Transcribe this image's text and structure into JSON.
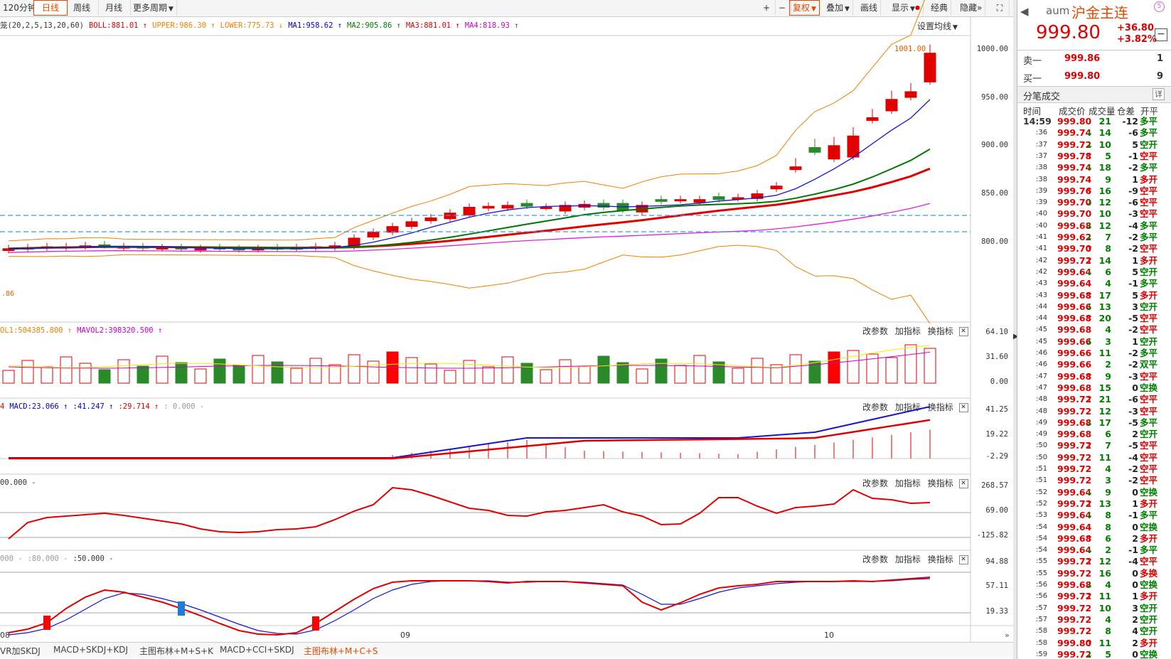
{
  "toolbar": {
    "period_120": "120分钟",
    "daily": "日线",
    "weekly": "周线",
    "monthly": "月线",
    "more_periods": "更多周期",
    "restore_rights": "复权",
    "overlay": "叠加",
    "draw_line": "画线",
    "display": "显示",
    "classic": "经典",
    "hide": "隐藏"
  },
  "main_chart": {
    "indicator_header": [
      {
        "text": "笼(20,2,5,13,20,60)",
        "color": "#333333"
      },
      {
        "text": "BOLL:881.01 ↑",
        "color": "#e00000"
      },
      {
        "text": "UPPER:986.30 ↑",
        "color": "#f08000"
      },
      {
        "text": "LOWER:775.73 ↓",
        "color": "#f08000"
      },
      {
        "text": "MA1:958.62 ↑",
        "color": "#0000d0"
      },
      {
        "text": "MA2:905.86 ↑",
        "color": "#008000"
      },
      {
        "text": "MA3:881.01 ↑",
        "color": "#e00000"
      },
      {
        "text": "MA4:818.93 ↑",
        "color": "#cc00cc"
      }
    ],
    "ma_settings": "设置均线",
    "max_label": "1001.00",
    "min_label": ".86",
    "y_ticks": [
      "1000.00",
      "950.00",
      "900.00",
      "850.00",
      "800.00"
    ]
  },
  "panels": {
    "change_params": "改参数",
    "add_indicator": "加指标",
    "switch_indicator": "换指标"
  },
  "vol_panel": {
    "header": [
      {
        "text": "OL1:504385.800 ↑",
        "color": "#f08000"
      },
      {
        "text": "MAVOL2:398320.500 ↑",
        "color": "#cc00cc"
      }
    ],
    "y_ticks": [
      "64.10",
      "31.60",
      "0.00"
    ]
  },
  "macd_panel": {
    "header": [
      {
        "text": "4",
        "color": "#e00000"
      },
      {
        "text": "MACD:23.066 ↑",
        "color": "#0000d0"
      },
      {
        "text": ":41.247 ↑",
        "color": "#0000d0"
      },
      {
        "text": ":29.714 ↑",
        "color": "#e00000"
      },
      {
        "text": ": 0.000 -",
        "color": "#999999"
      }
    ],
    "y_ticks": [
      "41.25",
      "19.22",
      "-2.29"
    ]
  },
  "cci_panel": {
    "header": [
      {
        "text": "00.000 -",
        "color": "#333333"
      }
    ],
    "y_ticks": [
      "268.57",
      "69.00",
      "-125.82"
    ]
  },
  "kdj_panel": {
    "header": [
      {
        "text": "000 -",
        "color": "#999999"
      },
      {
        "text": ":80.000 -",
        "color": "#999999"
      },
      {
        "text": ":50.000 -",
        "color": "#333333"
      }
    ],
    "y_ticks": [
      "94.88",
      "57.11",
      "19.33"
    ]
  },
  "x_axis": {
    "labels": [
      "08",
      "09",
      "10"
    ]
  },
  "bottom_tabs": [
    "VR加SKDJ",
    "MACD+SKDJ+KDJ",
    "主图布林+M+S+K",
    "MACD+CCI+SKDJ",
    "主图布林+M+C+S"
  ],
  "quote": {
    "code": "aum",
    "name": "沪金主连",
    "price": "999.80",
    "change": "+36.80",
    "change_pct": "+3.82%",
    "sell_label": "卖一",
    "sell_price": "999.86",
    "sell_vol": "1",
    "buy_label": "买一",
    "buy_price": "999.80",
    "buy_vol": "9",
    "ticks_title": "分笔成交",
    "detail_btn": "详",
    "col_headers": [
      "时间",
      "成交价",
      "成交量",
      "仓差",
      "开平"
    ]
  },
  "ticks": [
    {
      "t": "14:59",
      "p": "999.80",
      "d": "",
      "v": "21",
      "oi": "-12",
      "k": "多平",
      "pc": "red",
      "kc": "green"
    },
    {
      "t": ":36",
      "p": "999.74",
      "d": "↓",
      "v": "14",
      "oi": "-6",
      "k": "多平",
      "pc": "red",
      "kc": "green"
    },
    {
      "t": ":37",
      "p": "999.72",
      "d": "↓",
      "v": "10",
      "oi": "5",
      "k": "空开",
      "pc": "red",
      "kc": "green"
    },
    {
      "t": ":37",
      "p": "999.78",
      "d": "↑",
      "v": "5",
      "oi": "-1",
      "k": "空平",
      "pc": "red",
      "kc": "red"
    },
    {
      "t": ":38",
      "p": "999.74",
      "d": "↓",
      "v": "18",
      "oi": "-2",
      "k": "多平",
      "pc": "red",
      "kc": "green"
    },
    {
      "t": ":38",
      "p": "999.74",
      "d": "",
      "v": "9",
      "oi": "1",
      "k": "多开",
      "pc": "red",
      "kc": "red"
    },
    {
      "t": ":39",
      "p": "999.76",
      "d": "↑",
      "v": "16",
      "oi": "-9",
      "k": "空平",
      "pc": "red",
      "kc": "red"
    },
    {
      "t": ":39",
      "p": "999.70",
      "d": "↓",
      "v": "12",
      "oi": "-6",
      "k": "空平",
      "pc": "red",
      "kc": "red"
    },
    {
      "t": ":40",
      "p": "999.70",
      "d": "",
      "v": "10",
      "oi": "-3",
      "k": "空平",
      "pc": "red",
      "kc": "red"
    },
    {
      "t": ":40",
      "p": "999.68",
      "d": "↓",
      "v": "12",
      "oi": "-4",
      "k": "多平",
      "pc": "red",
      "kc": "green"
    },
    {
      "t": ":41",
      "p": "999.62",
      "d": "↓",
      "v": "7",
      "oi": "-2",
      "k": "多平",
      "pc": "red",
      "kc": "green"
    },
    {
      "t": ":41",
      "p": "999.70",
      "d": "↑",
      "v": "8",
      "oi": "-2",
      "k": "空平",
      "pc": "red",
      "kc": "red"
    },
    {
      "t": ":42",
      "p": "999.72",
      "d": "↑",
      "v": "14",
      "oi": "1",
      "k": "多开",
      "pc": "red",
      "kc": "red"
    },
    {
      "t": ":42",
      "p": "999.64",
      "d": "↓",
      "v": "6",
      "oi": "5",
      "k": "空开",
      "pc": "red",
      "kc": "green"
    },
    {
      "t": ":43",
      "p": "999.64",
      "d": "",
      "v": "4",
      "oi": "-1",
      "k": "多平",
      "pc": "red",
      "kc": "green"
    },
    {
      "t": ":43",
      "p": "999.68",
      "d": "↑",
      "v": "17",
      "oi": "5",
      "k": "多开",
      "pc": "red",
      "kc": "red"
    },
    {
      "t": ":44",
      "p": "999.66",
      "d": "↓",
      "v": "13",
      "oi": "3",
      "k": "空开",
      "pc": "red",
      "kc": "green"
    },
    {
      "t": ":44",
      "p": "999.68",
      "d": "↑",
      "v": "20",
      "oi": "-5",
      "k": "空平",
      "pc": "red",
      "kc": "red"
    },
    {
      "t": ":45",
      "p": "999.68",
      "d": "",
      "v": "4",
      "oi": "-2",
      "k": "空平",
      "pc": "red",
      "kc": "red"
    },
    {
      "t": ":45",
      "p": "999.66",
      "d": "↓",
      "v": "3",
      "oi": "1",
      "k": "空开",
      "pc": "red",
      "kc": "green"
    },
    {
      "t": ":46",
      "p": "999.66",
      "d": "",
      "v": "11",
      "oi": "-2",
      "k": "多平",
      "pc": "red",
      "kc": "green"
    },
    {
      "t": ":46",
      "p": "999.66",
      "d": "",
      "v": "2",
      "oi": "-2",
      "k": "双平",
      "pc": "red",
      "kc": "green"
    },
    {
      "t": ":47",
      "p": "999.68",
      "d": "↑",
      "v": "9",
      "oi": "-3",
      "k": "空平",
      "pc": "red",
      "kc": "red"
    },
    {
      "t": ":47",
      "p": "999.68",
      "d": "",
      "v": "15",
      "oi": "0",
      "k": "空换",
      "pc": "red",
      "kc": "green"
    },
    {
      "t": ":48",
      "p": "999.72",
      "d": "↑",
      "v": "21",
      "oi": "-6",
      "k": "空平",
      "pc": "red",
      "kc": "red"
    },
    {
      "t": ":48",
      "p": "999.72",
      "d": "",
      "v": "12",
      "oi": "-3",
      "k": "空平",
      "pc": "red",
      "kc": "red"
    },
    {
      "t": ":49",
      "p": "999.68",
      "d": "↓",
      "v": "17",
      "oi": "-5",
      "k": "多平",
      "pc": "red",
      "kc": "green"
    },
    {
      "t": ":49",
      "p": "999.68",
      "d": "",
      "v": "6",
      "oi": "2",
      "k": "空开",
      "pc": "red",
      "kc": "green"
    },
    {
      "t": ":50",
      "p": "999.72",
      "d": "↑",
      "v": "7",
      "oi": "-5",
      "k": "空平",
      "pc": "red",
      "kc": "red"
    },
    {
      "t": ":50",
      "p": "999.72",
      "d": "",
      "v": "11",
      "oi": "-4",
      "k": "空平",
      "pc": "red",
      "kc": "red"
    },
    {
      "t": ":51",
      "p": "999.72",
      "d": "",
      "v": "4",
      "oi": "-2",
      "k": "空平",
      "pc": "red",
      "kc": "red"
    },
    {
      "t": ":51",
      "p": "999.72",
      "d": "",
      "v": "3",
      "oi": "-2",
      "k": "空平",
      "pc": "red",
      "kc": "red"
    },
    {
      "t": ":52",
      "p": "999.64",
      "d": "↓",
      "v": "9",
      "oi": "0",
      "k": "空换",
      "pc": "red",
      "kc": "green"
    },
    {
      "t": ":52",
      "p": "999.72",
      "d": "↑",
      "v": "13",
      "oi": "1",
      "k": "多开",
      "pc": "red",
      "kc": "red"
    },
    {
      "t": ":53",
      "p": "999.64",
      "d": "↓",
      "v": "8",
      "oi": "-1",
      "k": "多平",
      "pc": "red",
      "kc": "green"
    },
    {
      "t": ":54",
      "p": "999.64",
      "d": "",
      "v": "8",
      "oi": "0",
      "k": "空换",
      "pc": "red",
      "kc": "green"
    },
    {
      "t": ":54",
      "p": "999.68",
      "d": "↑",
      "v": "6",
      "oi": "2",
      "k": "多开",
      "pc": "red",
      "kc": "red"
    },
    {
      "t": ":54",
      "p": "999.64",
      "d": "↓",
      "v": "2",
      "oi": "-1",
      "k": "多平",
      "pc": "red",
      "kc": "green"
    },
    {
      "t": ":55",
      "p": "999.72",
      "d": "↑",
      "v": "12",
      "oi": "-4",
      "k": "空平",
      "pc": "red",
      "kc": "red"
    },
    {
      "t": ":55",
      "p": "999.72",
      "d": "",
      "v": "16",
      "oi": "0",
      "k": "多换",
      "pc": "red",
      "kc": "red"
    },
    {
      "t": ":56",
      "p": "999.68",
      "d": "↓",
      "v": "4",
      "oi": "0",
      "k": "空换",
      "pc": "red",
      "kc": "green"
    },
    {
      "t": ":56",
      "p": "999.72",
      "d": "↑",
      "v": "11",
      "oi": "1",
      "k": "多开",
      "pc": "red",
      "kc": "red"
    },
    {
      "t": ":57",
      "p": "999.72",
      "d": "",
      "v": "10",
      "oi": "3",
      "k": "空开",
      "pc": "red",
      "kc": "green"
    },
    {
      "t": ":57",
      "p": "999.72",
      "d": "",
      "v": "4",
      "oi": "2",
      "k": "空开",
      "pc": "red",
      "kc": "green"
    },
    {
      "t": ":58",
      "p": "999.72",
      "d": "",
      "v": "8",
      "oi": "4",
      "k": "空开",
      "pc": "red",
      "kc": "green"
    },
    {
      "t": ":58",
      "p": "999.80",
      "d": "↑",
      "v": "11",
      "oi": "2",
      "k": "多开",
      "pc": "red",
      "kc": "red"
    },
    {
      "t": ":59",
      "p": "999.72",
      "d": "↓",
      "v": "5",
      "oi": "0",
      "k": "空换",
      "pc": "red",
      "kc": "green"
    }
  ],
  "colors": {
    "up": "#e00000",
    "down": "#2a8a2a",
    "accent": "#e24a00"
  }
}
